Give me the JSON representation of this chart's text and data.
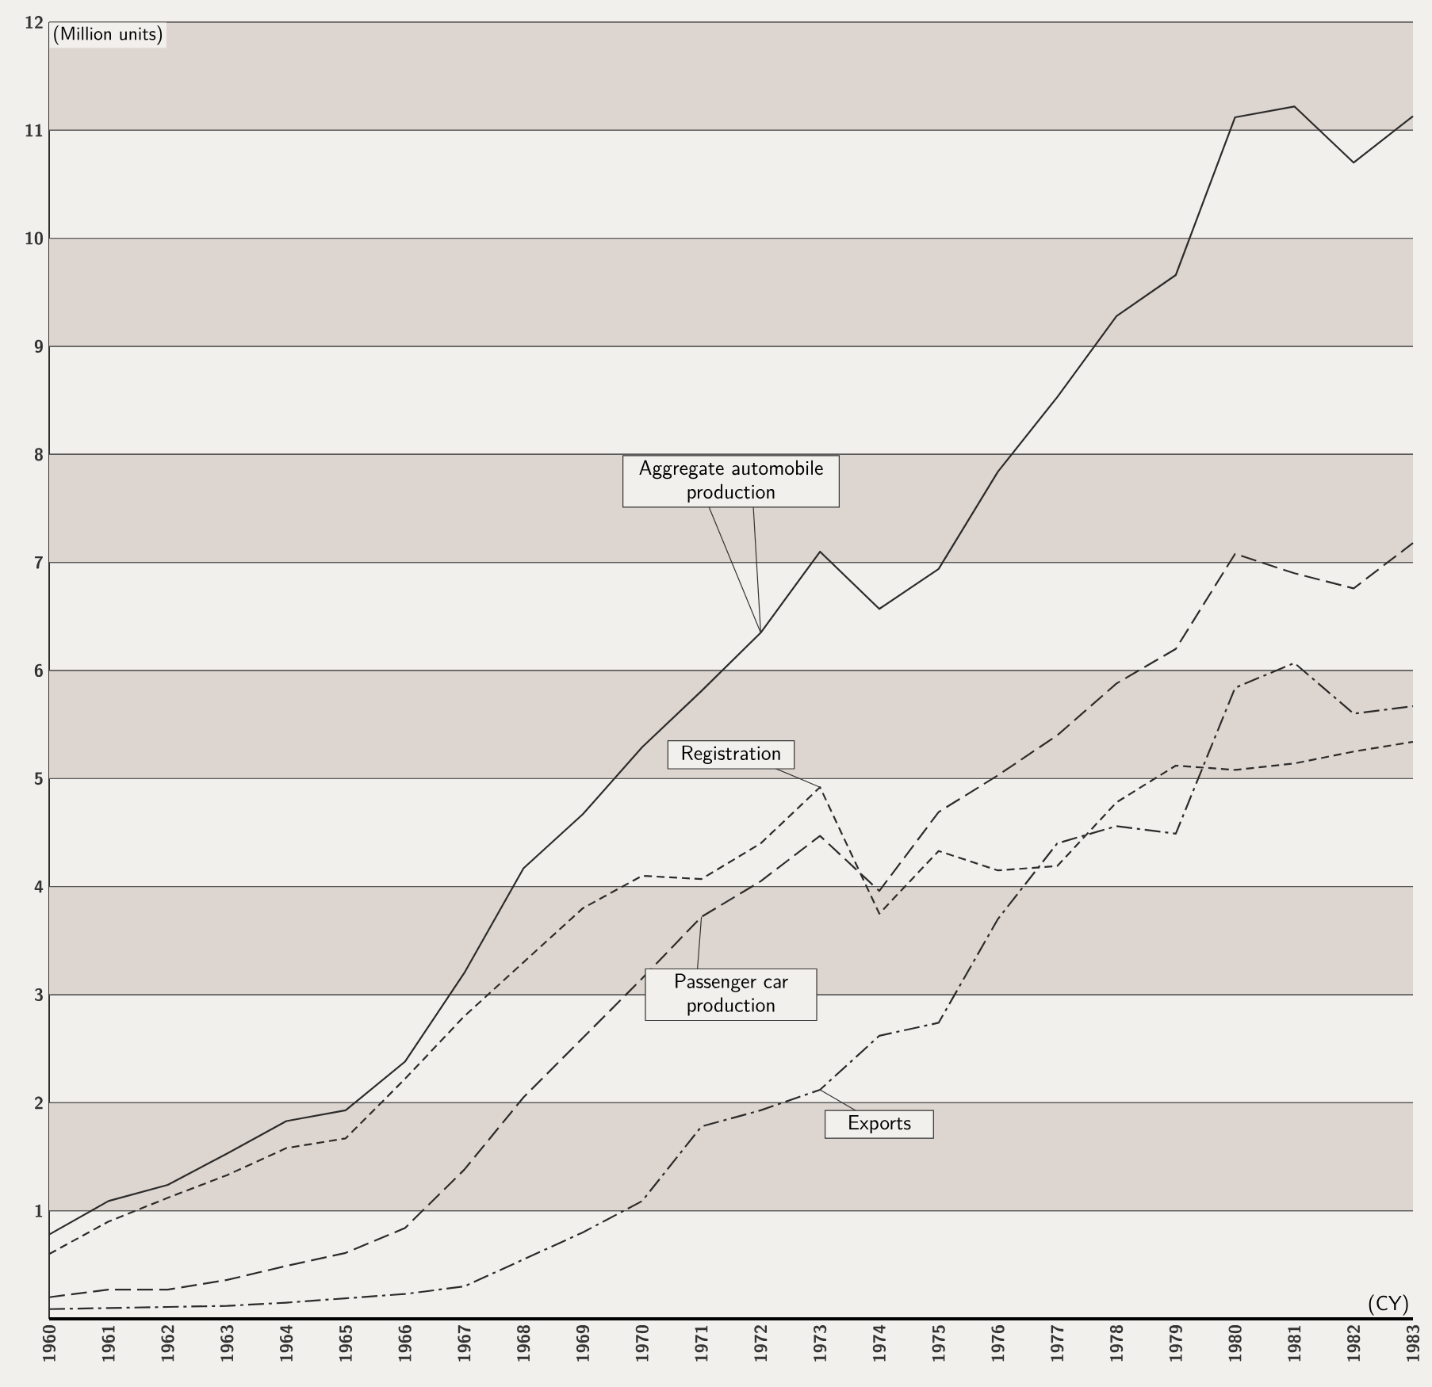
{
  "chart_data": {
    "type": "line",
    "ylabel": "(Million units)",
    "xlabel": "(CY)",
    "x": [
      1960,
      1961,
      1962,
      1963,
      1964,
      1965,
      1966,
      1967,
      1968,
      1969,
      1970,
      1971,
      1972,
      1973,
      1974,
      1975,
      1976,
      1977,
      1978,
      1979,
      1980,
      1981,
      1982,
      1983
    ],
    "series": [
      {
        "name": "Aggregate automobile production",
        "color": "#2b2b2b",
        "line_style": "solid",
        "values": [
          0.78,
          1.09,
          1.24,
          1.53,
          1.83,
          1.93,
          2.38,
          3.2,
          4.17,
          4.67,
          5.29,
          5.81,
          6.35,
          7.1,
          6.57,
          6.94,
          7.84,
          8.53,
          9.28,
          9.66,
          11.12,
          11.22,
          10.7,
          11.13
        ]
      },
      {
        "name": "Registration",
        "color": "#2b2b2b",
        "line_style": "dashed",
        "values": [
          0.6,
          0.9,
          1.12,
          1.33,
          1.58,
          1.67,
          2.22,
          2.8,
          3.3,
          3.8,
          4.1,
          4.07,
          4.4,
          4.92,
          3.75,
          4.33,
          4.15,
          4.19,
          4.78,
          5.12,
          5.08,
          5.14,
          5.25,
          5.34
        ]
      },
      {
        "name": "Passenger car production",
        "color": "#2b2b2b",
        "line_style": "loosely dashed",
        "values": [
          0.2,
          0.27,
          0.27,
          0.36,
          0.49,
          0.61,
          0.84,
          1.38,
          2.05,
          2.6,
          3.15,
          3.72,
          4.05,
          4.47,
          3.96,
          4.69,
          5.03,
          5.4,
          5.88,
          6.2,
          7.08,
          6.9,
          6.76,
          7.18
        ]
      },
      {
        "name": "Exports",
        "color": "#2b2b2b",
        "line_style": "dashdotted",
        "values": [
          0.09,
          0.1,
          0.11,
          0.12,
          0.15,
          0.19,
          0.23,
          0.3,
          0.55,
          0.8,
          1.09,
          1.78,
          1.93,
          2.12,
          2.62,
          2.74,
          3.7,
          4.4,
          4.56,
          4.49,
          5.84,
          6.07,
          5.6,
          5.67
        ]
      }
    ],
    "xlim": [
      1960,
      1983
    ],
    "ylim": [
      0,
      12
    ],
    "xticks": [
      1960,
      1961,
      1962,
      1963,
      1964,
      1965,
      1966,
      1967,
      1968,
      1969,
      1970,
      1971,
      1972,
      1973,
      1974,
      1975,
      1976,
      1977,
      1978,
      1979,
      1980,
      1981,
      1982,
      1983
    ],
    "yticks": [
      1,
      2,
      3,
      4,
      5,
      6,
      7,
      8,
      9,
      10,
      11,
      12
    ],
    "grid": "y",
    "bands": [
      {
        "axis": "y",
        "from": 1,
        "to": 2,
        "color": "#ddd5cf"
      },
      {
        "axis": "y",
        "from": 3,
        "to": 4,
        "color": "#ddd5cf"
      },
      {
        "axis": "y",
        "from": 5,
        "to": 6,
        "color": "#ddd5cf"
      },
      {
        "axis": "y",
        "from": 7,
        "to": 8,
        "color": "#ddd5cf"
      },
      {
        "axis": "y",
        "from": 9,
        "to": 10,
        "color": "#ddd5cf"
      },
      {
        "axis": "y",
        "from": 11,
        "to": 12,
        "color": "#ddd5cf"
      }
    ]
  }
}
